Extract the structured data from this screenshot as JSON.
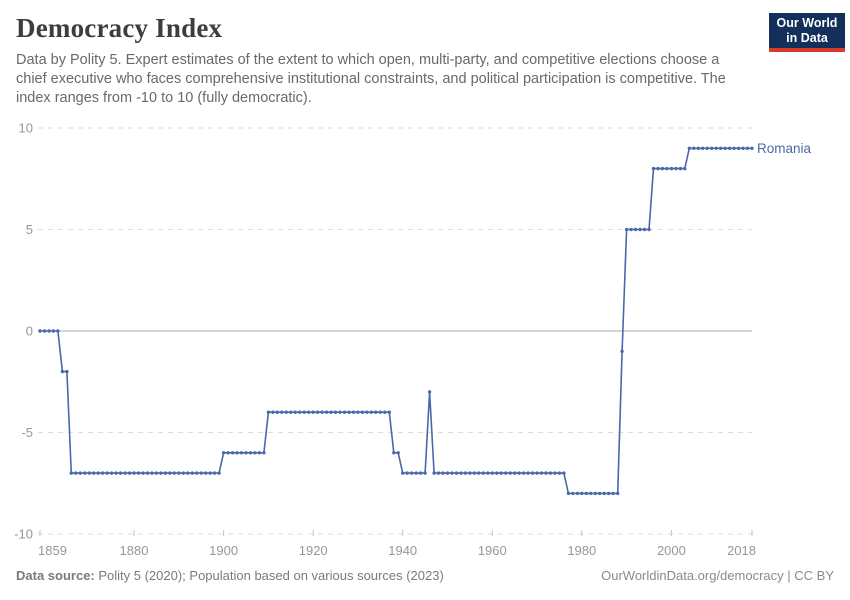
{
  "header": {
    "title": "Democracy Index",
    "subtitle": "Data by Polity 5. Expert estimates of the extent to which open, multi-party, and competitive elections choose a chief executive who faces comprehensive institutional constraints, and political participation is competitive. The index ranges from -10 to 10 (fully democratic).",
    "logo": {
      "line1": "Our World",
      "line2": "in Data",
      "bg_color": "#12305a",
      "accent_color": "#d93a2b"
    }
  },
  "chart_data": {
    "type": "line",
    "title": "Democracy Index",
    "entity": "Romania",
    "xlabel": "",
    "ylabel": "",
    "xlim": [
      1859,
      2018
    ],
    "ylim": [
      -10,
      10
    ],
    "x_ticks": [
      1859,
      1880,
      1900,
      1920,
      1940,
      1960,
      1980,
      2000,
      2018
    ],
    "y_ticks": [
      10,
      5,
      0,
      -5,
      -10
    ],
    "grid": "dashed horizontal gridlines, solid zero line, markers on every yearly point, legend label at line end",
    "line_color": "#4a69a8",
    "runs": [
      {
        "from": 1859,
        "to": 1863,
        "value": 0
      },
      {
        "from": 1864,
        "to": 1865,
        "value": -2
      },
      {
        "from": 1866,
        "to": 1899,
        "value": -7
      },
      {
        "from": 1900,
        "to": 1909,
        "value": -6
      },
      {
        "from": 1910,
        "to": 1937,
        "value": -4
      },
      {
        "from": 1938,
        "to": 1939,
        "value": -6
      },
      {
        "from": 1940,
        "to": 1945,
        "value": -7
      },
      {
        "from": 1946,
        "to": 1946,
        "value": -3
      },
      {
        "from": 1947,
        "to": 1976,
        "value": -7
      },
      {
        "from": 1977,
        "to": 1988,
        "value": -8
      },
      {
        "from": 1989,
        "to": 1989,
        "value": -1
      },
      {
        "from": 1990,
        "to": 1995,
        "value": 5
      },
      {
        "from": 1996,
        "to": 2003,
        "value": 8
      },
      {
        "from": 2004,
        "to": 2018,
        "value": 9
      }
    ]
  },
  "footer": {
    "source_label": "Data source:",
    "source_text": " Polity 5 (2020); Population based on various sources (2023)",
    "link_text": "OurWorldinData.org/democracy | CC BY"
  }
}
